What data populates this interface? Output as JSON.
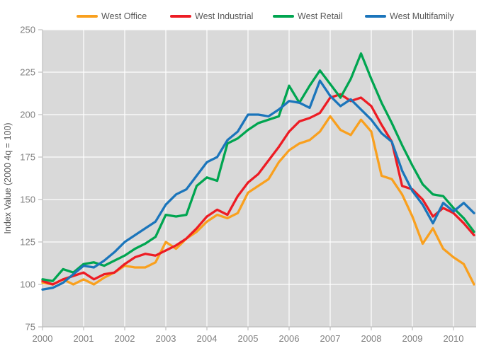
{
  "chart_data": {
    "type": "line",
    "title": "",
    "ylabel": "Index Value (2000 4q = 100)",
    "xlabel": "",
    "ylim": [
      75,
      250
    ],
    "y_ticks": [
      75,
      100,
      125,
      150,
      175,
      200,
      225,
      250
    ],
    "x_tick_labels": [
      "2000",
      "2001",
      "2002",
      "2003",
      "2004",
      "2005",
      "2006",
      "2007",
      "2008",
      "2009",
      "2010"
    ],
    "x_frequency": "quarterly",
    "x_range": "2000Q1 - 2010Q3",
    "points_per_year": 4,
    "legend_position": "top",
    "grid": {
      "plot_background": "#D9D9D9",
      "gridline_color": "#FFFFFF",
      "axis_color": "#BFBFBF"
    },
    "text_colors": {
      "tick_label": "#7F7F7F",
      "legend_label": "#595959",
      "axis_title": "#595959"
    },
    "series": [
      {
        "name": "West Office",
        "color": "#F9A01E",
        "values": [
          101,
          100,
          103,
          100,
          103,
          100,
          104,
          107,
          111,
          110,
          110,
          113,
          125,
          121,
          127,
          131,
          137,
          141,
          139,
          142,
          154,
          158,
          162,
          172,
          179,
          183,
          185,
          190,
          199,
          191,
          188,
          197,
          190,
          164,
          162,
          153,
          140,
          124,
          133,
          121,
          116,
          112,
          100
        ]
      },
      {
        "name": "West Industrial",
        "color": "#ED1C24",
        "values": [
          102,
          100,
          103,
          105,
          107,
          103,
          106,
          107,
          112,
          116,
          118,
          117,
          120,
          123,
          127,
          133,
          140,
          144,
          141,
          152,
          160,
          165,
          173,
          181,
          190,
          196,
          198,
          201,
          210,
          212,
          208,
          210,
          205,
          194,
          184,
          158,
          156,
          150,
          140,
          145,
          142,
          136,
          129
        ]
      },
      {
        "name": "West Retail",
        "color": "#00A550",
        "values": [
          103,
          102,
          109,
          107,
          112,
          113,
          111,
          114,
          117,
          121,
          124,
          128,
          141,
          140,
          141,
          158,
          163,
          161,
          183,
          186,
          191,
          195,
          197,
          199,
          217,
          207,
          217,
          226,
          218,
          210,
          221,
          236,
          221,
          207,
          195,
          182,
          170,
          159,
          153,
          152,
          145,
          139,
          131
        ]
      },
      {
        "name": "West Multifamily",
        "color": "#1B75BB",
        "values": [
          97,
          98,
          101,
          106,
          111,
          110,
          114,
          119,
          125,
          129,
          133,
          137,
          147,
          153,
          156,
          164,
          172,
          175,
          185,
          190,
          200,
          200,
          199,
          203,
          208,
          207,
          204,
          220,
          211,
          205,
          209,
          203,
          197,
          189,
          184,
          167,
          155,
          147,
          136,
          148,
          143,
          148,
          142
        ]
      }
    ]
  }
}
